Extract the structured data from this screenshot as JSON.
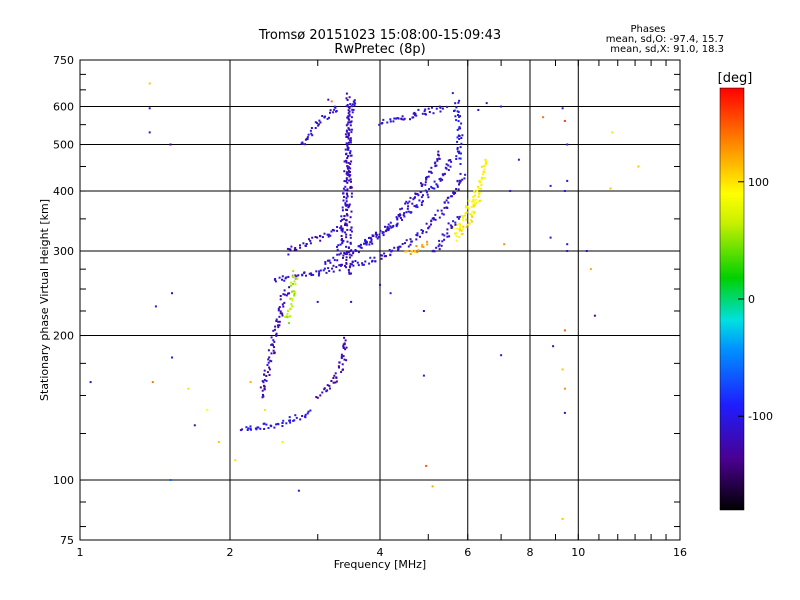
{
  "chart_data": {
    "type": "scatter",
    "title": "Tromsø 20151023 15:08:00-15:09:43",
    "subtitle": "RwPretec (8p)",
    "xlabel": "Frequency [MHz]",
    "ylabel": "Stationary phase Virtual Height [km]",
    "x_scale": "log",
    "y_scale": "log",
    "xlim": [
      1,
      16
    ],
    "ylim": [
      75,
      750
    ],
    "x_ticks": [
      1,
      2,
      4,
      6,
      8,
      10,
      16
    ],
    "x_tick_labels": [
      "1",
      "2",
      "4",
      "6",
      "8",
      "10",
      "16"
    ],
    "y_ticks": [
      75,
      100,
      200,
      300,
      400,
      500,
      600,
      750
    ],
    "y_tick_labels": [
      "75",
      "100",
      "200",
      "300",
      "400",
      "500",
      "600",
      "750"
    ],
    "grid": true,
    "phase_box": {
      "heading": "Phases",
      "line1": "mean, sd,O: -97.4, 15.7",
      "line2": "mean, sd,X:  91.0, 18.3"
    },
    "colorbar": {
      "unit": "[deg]",
      "ticks": [
        100,
        0,
        -100
      ],
      "tick_labels": [
        "100",
        "0",
        "-100"
      ],
      "range": [
        -180,
        180
      ],
      "colormap": "rainbow"
    },
    "traces": [
      {
        "name": "",
        "phase": -110,
        "points": [
          [
            2.45,
            263
          ],
          [
            2.55,
            264
          ],
          [
            2.65,
            266
          ],
          [
            2.75,
            268
          ],
          [
            2.9,
            270
          ],
          [
            3.05,
            273
          ],
          [
            3.2,
            276
          ],
          [
            3.35,
            279
          ],
          [
            3.5,
            282
          ],
          [
            3.7,
            286
          ],
          [
            3.9,
            290
          ],
          [
            4.1,
            296
          ],
          [
            4.3,
            303
          ],
          [
            4.5,
            312
          ],
          [
            4.7,
            322
          ],
          [
            4.9,
            334
          ],
          [
            5.1,
            348
          ],
          [
            5.3,
            365
          ],
          [
            5.5,
            385
          ],
          [
            5.7,
            410
          ],
          [
            5.85,
            440
          ]
        ]
      },
      {
        "name": "",
        "phase": -115,
        "points": [
          [
            3.1,
            285
          ],
          [
            3.3,
            292
          ],
          [
            3.5,
            300
          ],
          [
            3.7,
            310
          ],
          [
            3.9,
            322
          ],
          [
            4.1,
            336
          ],
          [
            4.3,
            352
          ],
          [
            4.5,
            372
          ],
          [
            4.7,
            395
          ],
          [
            4.9,
            420
          ],
          [
            5.1,
            450
          ],
          [
            5.3,
            485
          ]
        ]
      },
      {
        "name": "",
        "phase": -105,
        "points": [
          [
            3.6,
            310
          ],
          [
            3.8,
            318
          ],
          [
            4.0,
            328
          ],
          [
            4.2,
            340
          ],
          [
            4.4,
            353
          ],
          [
            4.6,
            367
          ],
          [
            4.8,
            383
          ],
          [
            5.0,
            400
          ],
          [
            5.2,
            420
          ],
          [
            5.4,
            443
          ],
          [
            5.6,
            470
          ]
        ]
      },
      {
        "name": "",
        "phase": -120,
        "points": [
          [
            3.45,
            270
          ],
          [
            3.45,
            290
          ],
          [
            3.45,
            310
          ],
          [
            3.45,
            330
          ],
          [
            3.45,
            350
          ],
          [
            3.45,
            375
          ],
          [
            3.45,
            400
          ],
          [
            3.45,
            430
          ],
          [
            3.45,
            460
          ],
          [
            3.45,
            490
          ],
          [
            3.45,
            520
          ],
          [
            3.45,
            550
          ],
          [
            3.45,
            580
          ],
          [
            3.45,
            610
          ],
          [
            3.45,
            640
          ]
        ]
      },
      {
        "name": "",
        "phase": -112,
        "points": [
          [
            3.3,
            300
          ],
          [
            3.35,
            330
          ],
          [
            3.38,
            360
          ],
          [
            3.4,
            400
          ],
          [
            3.42,
            440
          ],
          [
            3.43,
            480
          ],
          [
            3.44,
            520
          ],
          [
            3.46,
            560
          ],
          [
            3.5,
            600
          ],
          [
            3.55,
            630
          ]
        ]
      },
      {
        "name": "",
        "phase": -118,
        "points": [
          [
            2.6,
            300
          ],
          [
            2.8,
            310
          ],
          [
            3.0,
            320
          ],
          [
            3.2,
            330
          ],
          [
            3.4,
            338
          ]
        ]
      },
      {
        "name": "",
        "phase": -108,
        "points": [
          [
            2.8,
            500
          ],
          [
            2.9,
            530
          ],
          [
            3.0,
            555
          ],
          [
            3.1,
            575
          ],
          [
            3.2,
            590
          ],
          [
            3.3,
            598
          ]
        ]
      },
      {
        "name": "",
        "phase": -110,
        "points": [
          [
            4.0,
            560
          ],
          [
            4.2,
            565
          ],
          [
            4.4,
            570
          ],
          [
            4.6,
            578
          ],
          [
            4.8,
            585
          ],
          [
            5.0,
            590
          ],
          [
            5.2,
            595
          ],
          [
            5.4,
            600
          ]
        ]
      },
      {
        "name": "",
        "phase": -120,
        "points": [
          [
            2.3,
            150
          ],
          [
            2.35,
            165
          ],
          [
            2.4,
            180
          ],
          [
            2.45,
            200
          ],
          [
            2.5,
            220
          ],
          [
            2.55,
            240
          ],
          [
            2.6,
            255
          ]
        ]
      },
      {
        "name": "",
        "phase": -100,
        "points": [
          [
            2.1,
            128
          ],
          [
            2.2,
            129
          ],
          [
            2.3,
            130
          ],
          [
            2.45,
            131
          ],
          [
            2.6,
            133
          ],
          [
            2.75,
            136
          ],
          [
            2.9,
            140
          ]
        ]
      },
      {
        "name": "",
        "phase": -125,
        "points": [
          [
            3.0,
            150
          ],
          [
            3.1,
            155
          ],
          [
            3.2,
            160
          ],
          [
            3.3,
            168
          ],
          [
            3.35,
            178
          ],
          [
            3.4,
            190
          ],
          [
            3.42,
            200
          ]
        ]
      },
      {
        "name": "",
        "phase": 90,
        "points": [
          [
            5.6,
            330
          ],
          [
            5.8,
            350
          ],
          [
            6.0,
            370
          ],
          [
            6.2,
            395
          ],
          [
            6.35,
            420
          ],
          [
            6.45,
            450
          ],
          [
            6.5,
            470
          ]
        ]
      },
      {
        "name": "",
        "phase": 95,
        "points": [
          [
            5.7,
            320
          ],
          [
            5.9,
            340
          ],
          [
            6.1,
            360
          ],
          [
            6.25,
            380
          ],
          [
            6.3,
            400
          ]
        ]
      },
      {
        "name": "",
        "phase": -100,
        "points": [
          [
            5.7,
            460
          ],
          [
            5.75,
            500
          ],
          [
            5.75,
            540
          ],
          [
            5.7,
            580
          ],
          [
            5.65,
            620
          ]
        ]
      },
      {
        "name": "",
        "phase": -110,
        "points": [
          [
            5.1,
            300
          ],
          [
            5.3,
            315
          ],
          [
            5.5,
            335
          ],
          [
            5.7,
            360
          ]
        ]
      },
      {
        "name": "",
        "phase": 120,
        "points": [
          [
            4.5,
            300
          ],
          [
            4.8,
            305
          ],
          [
            5.0,
            312
          ]
        ]
      },
      {
        "name": "",
        "phase": 60,
        "points": [
          [
            2.6,
            215
          ],
          [
            2.65,
            240
          ],
          [
            2.7,
            275
          ]
        ]
      }
    ],
    "scattered_points": [
      {
        "x": 1.05,
        "y": 160,
        "phase": -120
      },
      {
        "x": 1.38,
        "y": 670,
        "phase": 110
      },
      {
        "x": 1.38,
        "y": 595,
        "phase": -100
      },
      {
        "x": 1.38,
        "y": 530,
        "phase": -110
      },
      {
        "x": 1.4,
        "y": 160,
        "phase": 140
      },
      {
        "x": 1.42,
        "y": 230,
        "phase": -100
      },
      {
        "x": 1.52,
        "y": 500,
        "phase": -130
      },
      {
        "x": 1.53,
        "y": 245,
        "phase": -110
      },
      {
        "x": 1.53,
        "y": 180,
        "phase": -90
      },
      {
        "x": 1.52,
        "y": 100,
        "phase": -60
      },
      {
        "x": 1.65,
        "y": 155,
        "phase": 100
      },
      {
        "x": 1.7,
        "y": 130,
        "phase": -120
      },
      {
        "x": 1.8,
        "y": 140,
        "phase": 90
      },
      {
        "x": 1.9,
        "y": 120,
        "phase": 110
      },
      {
        "x": 2.05,
        "y": 110,
        "phase": 100
      },
      {
        "x": 2.75,
        "y": 95,
        "phase": -110
      },
      {
        "x": 2.55,
        "y": 120,
        "phase": 80
      },
      {
        "x": 4.9,
        "y": 165,
        "phase": -100
      },
      {
        "x": 4.9,
        "y": 225,
        "phase": -110
      },
      {
        "x": 4.95,
        "y": 107,
        "phase": 150
      },
      {
        "x": 5.1,
        "y": 97,
        "phase": 120
      },
      {
        "x": 7.1,
        "y": 310,
        "phase": 130
      },
      {
        "x": 7.3,
        "y": 400,
        "phase": -100
      },
      {
        "x": 7.6,
        "y": 465,
        "phase": -100
      },
      {
        "x": 7.0,
        "y": 600,
        "phase": -110
      },
      {
        "x": 7.0,
        "y": 182,
        "phase": -100
      },
      {
        "x": 8.5,
        "y": 570,
        "phase": 140
      },
      {
        "x": 8.8,
        "y": 410,
        "phase": -100
      },
      {
        "x": 8.8,
        "y": 320,
        "phase": -110
      },
      {
        "x": 8.9,
        "y": 190,
        "phase": -120
      },
      {
        "x": 9.3,
        "y": 595,
        "phase": -100
      },
      {
        "x": 9.4,
        "y": 560,
        "phase": 160
      },
      {
        "x": 9.5,
        "y": 500,
        "phase": -100
      },
      {
        "x": 9.5,
        "y": 420,
        "phase": -110
      },
      {
        "x": 9.4,
        "y": 400,
        "phase": -100
      },
      {
        "x": 9.5,
        "y": 310,
        "phase": -110
      },
      {
        "x": 9.4,
        "y": 205,
        "phase": 150
      },
      {
        "x": 9.3,
        "y": 170,
        "phase": 110
      },
      {
        "x": 9.4,
        "y": 155,
        "phase": 130
      },
      {
        "x": 9.4,
        "y": 138,
        "phase": -110
      },
      {
        "x": 9.3,
        "y": 83,
        "phase": 110
      },
      {
        "x": 9.5,
        "y": 300,
        "phase": -110
      },
      {
        "x": 10.4,
        "y": 300,
        "phase": -110
      },
      {
        "x": 10.8,
        "y": 220,
        "phase": -130
      },
      {
        "x": 10.6,
        "y": 275,
        "phase": 120
      },
      {
        "x": 11.6,
        "y": 405,
        "phase": 110
      },
      {
        "x": 11.7,
        "y": 530,
        "phase": 100
      },
      {
        "x": 13.2,
        "y": 450,
        "phase": 110
      },
      {
        "x": 6.3,
        "y": 590,
        "phase": -100
      },
      {
        "x": 6.55,
        "y": 610,
        "phase": -110
      },
      {
        "x": 5.6,
        "y": 640,
        "phase": -100
      },
      {
        "x": 3.15,
        "y": 620,
        "phase": -110
      },
      {
        "x": 3.2,
        "y": 615,
        "phase": 140
      },
      {
        "x": 4.0,
        "y": 255,
        "phase": -110
      },
      {
        "x": 4.2,
        "y": 245,
        "phase": -100
      },
      {
        "x": 3.0,
        "y": 235,
        "phase": -120
      },
      {
        "x": 3.5,
        "y": 235,
        "phase": -115
      },
      {
        "x": 2.2,
        "y": 160,
        "phase": 120
      },
      {
        "x": 2.35,
        "y": 140,
        "phase": 100
      }
    ]
  }
}
